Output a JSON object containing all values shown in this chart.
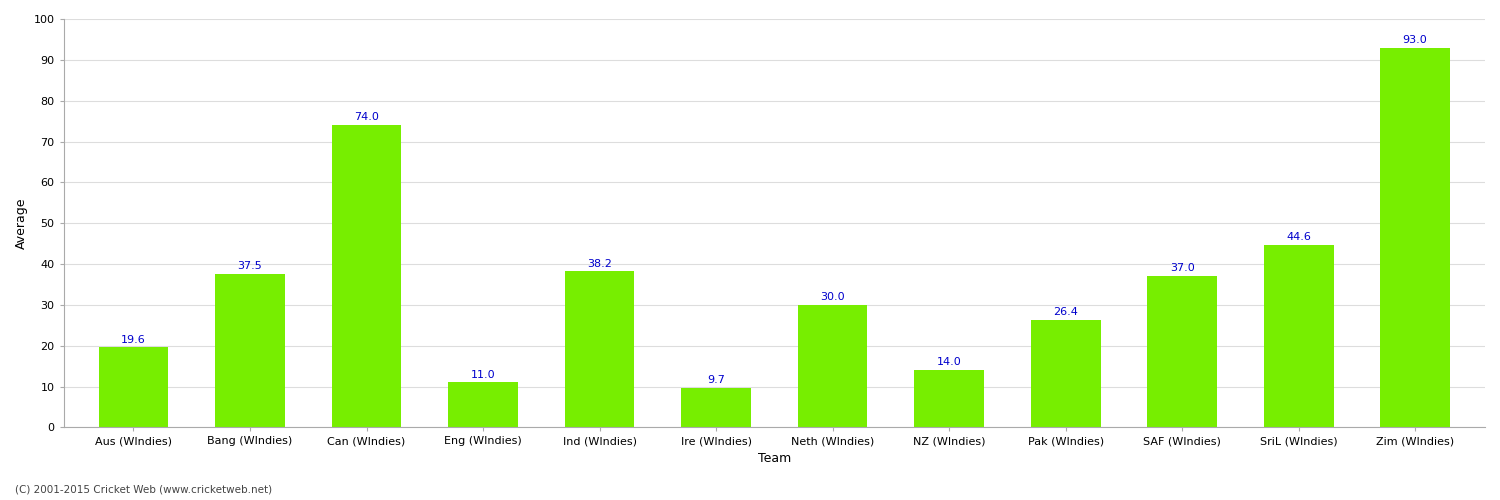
{
  "categories": [
    "Aus (WIndies)",
    "Bang (WIndies)",
    "Can (WIndies)",
    "Eng (WIndies)",
    "Ind (WIndies)",
    "Ire (WIndies)",
    "Neth (WIndies)",
    "NZ (WIndies)",
    "Pak (WIndies)",
    "SAF (WIndies)",
    "SriL (WIndies)",
    "Zim (WIndies)"
  ],
  "values": [
    19.6,
    37.5,
    74.0,
    11.0,
    38.2,
    9.7,
    30.0,
    14.0,
    26.4,
    37.0,
    44.6,
    93.0
  ],
  "bar_color": "#77ee00",
  "label_color": "#0000cc",
  "ylabel": "Average",
  "xlabel": "Team",
  "ylim": [
    0,
    100
  ],
  "yticks": [
    0,
    10,
    20,
    30,
    40,
    50,
    60,
    70,
    80,
    90,
    100
  ],
  "grid_color": "#dddddd",
  "background_color": "#ffffff",
  "fig_background": "#ffffff",
  "axis_label_fontsize": 9,
  "tick_fontsize": 8,
  "bar_label_fontsize": 8,
  "footer_text": "(C) 2001-2015 Cricket Web (www.cricketweb.net)"
}
